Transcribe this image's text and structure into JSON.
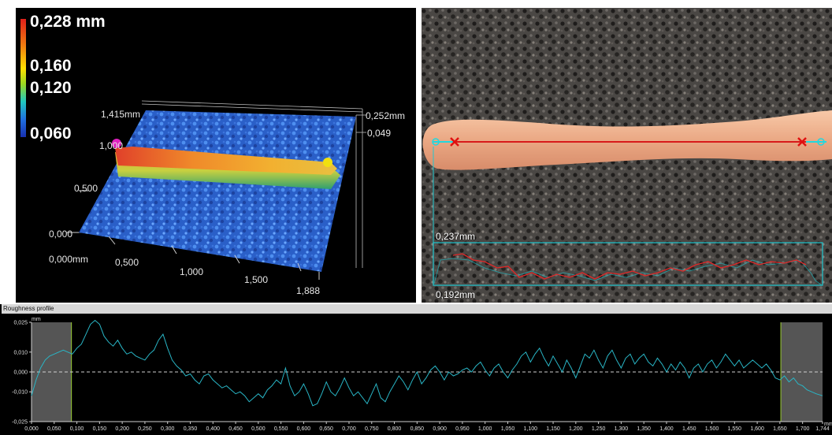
{
  "view3d": {
    "legend": {
      "max": "0,228 mm",
      "v1": "0,160",
      "v2": "0,120",
      "min": "0,060"
    },
    "axis_y": [
      "1,415mm",
      "1,000",
      "0,500",
      "0,000"
    ],
    "axis_x": [
      "0,000mm",
      "0,500",
      "1,000",
      "1,500",
      "1,888"
    ],
    "axis_z": [
      "0,252mm",
      "0,049"
    ]
  },
  "microscope": {
    "label_top": "0,237mm",
    "label_bottom": "0,192mm"
  },
  "roughness": {
    "title": "Roughness profile",
    "unit_y": "mm",
    "unit_x": "mm",
    "y_ticks": [
      "0,025",
      "0,010",
      "0,000",
      "-0,010",
      "-0,025"
    ],
    "x_ticks": [
      "0,000",
      "0,050",
      "0,100",
      "0,150",
      "0,200",
      "0,250",
      "0,300",
      "0,350",
      "0,400",
      "0,450",
      "0,500",
      "0,550",
      "0,600",
      "0,650",
      "0,700",
      "0,750",
      "0,800",
      "0,850",
      "0,900",
      "0,950",
      "1,000",
      "1,050",
      "1,100",
      "1,150",
      "1,200",
      "1,250",
      "1,300",
      "1,350",
      "1,400",
      "1,450",
      "1,500",
      "1,550",
      "1,600",
      "1,650",
      "1,700",
      "1,744"
    ],
    "cutoff_left": 0.088,
    "cutoff_right": 1.652,
    "x_range": [
      0,
      1.744
    ],
    "y_range": [
      -0.025,
      0.025
    ],
    "line_color": "#29b6c6",
    "profile": [
      [
        0.0,
        -0.012
      ],
      [
        0.01,
        -0.004
      ],
      [
        0.02,
        0.002
      ],
      [
        0.03,
        0.006
      ],
      [
        0.04,
        0.008
      ],
      [
        0.05,
        0.009
      ],
      [
        0.06,
        0.01
      ],
      [
        0.07,
        0.011
      ],
      [
        0.08,
        0.01
      ],
      [
        0.09,
        0.009
      ],
      [
        0.1,
        0.012
      ],
      [
        0.11,
        0.014
      ],
      [
        0.12,
        0.019
      ],
      [
        0.13,
        0.024
      ],
      [
        0.14,
        0.026
      ],
      [
        0.15,
        0.024
      ],
      [
        0.16,
        0.018
      ],
      [
        0.17,
        0.015
      ],
      [
        0.18,
        0.013
      ],
      [
        0.19,
        0.016
      ],
      [
        0.2,
        0.012
      ],
      [
        0.21,
        0.009
      ],
      [
        0.22,
        0.01
      ],
      [
        0.23,
        0.008
      ],
      [
        0.24,
        0.007
      ],
      [
        0.25,
        0.006
      ],
      [
        0.26,
        0.009
      ],
      [
        0.27,
        0.011
      ],
      [
        0.28,
        0.016
      ],
      [
        0.29,
        0.019
      ],
      [
        0.3,
        0.012
      ],
      [
        0.31,
        0.006
      ],
      [
        0.32,
        0.003
      ],
      [
        0.33,
        0.001
      ],
      [
        0.34,
        -0.002
      ],
      [
        0.35,
        -0.001
      ],
      [
        0.36,
        -0.004
      ],
      [
        0.37,
        -0.006
      ],
      [
        0.38,
        -0.002
      ],
      [
        0.39,
        -0.001
      ],
      [
        0.4,
        -0.004
      ],
      [
        0.41,
        -0.006
      ],
      [
        0.42,
        -0.008
      ],
      [
        0.43,
        -0.007
      ],
      [
        0.44,
        -0.009
      ],
      [
        0.45,
        -0.011
      ],
      [
        0.46,
        -0.01
      ],
      [
        0.47,
        -0.012
      ],
      [
        0.48,
        -0.015
      ],
      [
        0.49,
        -0.013
      ],
      [
        0.5,
        -0.011
      ],
      [
        0.51,
        -0.013
      ],
      [
        0.52,
        -0.009
      ],
      [
        0.53,
        -0.007
      ],
      [
        0.54,
        -0.004
      ],
      [
        0.55,
        -0.006
      ],
      [
        0.56,
        0.002
      ],
      [
        0.57,
        -0.007
      ],
      [
        0.58,
        -0.012
      ],
      [
        0.59,
        -0.01
      ],
      [
        0.6,
        -0.006
      ],
      [
        0.61,
        -0.011
      ],
      [
        0.62,
        -0.017
      ],
      [
        0.63,
        -0.016
      ],
      [
        0.64,
        -0.011
      ],
      [
        0.65,
        -0.005
      ],
      [
        0.66,
        -0.01
      ],
      [
        0.67,
        -0.012
      ],
      [
        0.68,
        -0.008
      ],
      [
        0.69,
        -0.003
      ],
      [
        0.7,
        -0.008
      ],
      [
        0.71,
        -0.012
      ],
      [
        0.72,
        -0.01
      ],
      [
        0.73,
        -0.013
      ],
      [
        0.74,
        -0.016
      ],
      [
        0.75,
        -0.011
      ],
      [
        0.76,
        -0.006
      ],
      [
        0.77,
        -0.013
      ],
      [
        0.78,
        -0.015
      ],
      [
        0.79,
        -0.01
      ],
      [
        0.8,
        -0.006
      ],
      [
        0.81,
        -0.002
      ],
      [
        0.82,
        -0.005
      ],
      [
        0.83,
        -0.009
      ],
      [
        0.84,
        -0.004
      ],
      [
        0.85,
        0.0
      ],
      [
        0.86,
        -0.006
      ],
      [
        0.87,
        -0.003
      ],
      [
        0.88,
        0.001
      ],
      [
        0.89,
        0.003
      ],
      [
        0.9,
        0.0
      ],
      [
        0.91,
        -0.004
      ],
      [
        0.92,
        0.0
      ],
      [
        0.93,
        -0.002
      ],
      [
        0.94,
        -0.001
      ],
      [
        0.95,
        0.001
      ],
      [
        0.96,
        0.002
      ],
      [
        0.97,
        0.0
      ],
      [
        0.98,
        0.003
      ],
      [
        0.99,
        0.005
      ],
      [
        1.0,
        0.001
      ],
      [
        1.01,
        -0.002
      ],
      [
        1.02,
        0.002
      ],
      [
        1.03,
        0.004
      ],
      [
        1.04,
        0.0
      ],
      [
        1.05,
        -0.003
      ],
      [
        1.06,
        0.001
      ],
      [
        1.07,
        0.004
      ],
      [
        1.08,
        0.008
      ],
      [
        1.09,
        0.01
      ],
      [
        1.1,
        0.005
      ],
      [
        1.11,
        0.009
      ],
      [
        1.12,
        0.012
      ],
      [
        1.13,
        0.007
      ],
      [
        1.14,
        0.003
      ],
      [
        1.15,
        0.008
      ],
      [
        1.16,
        0.004
      ],
      [
        1.17,
        0.0
      ],
      [
        1.18,
        0.006
      ],
      [
        1.19,
        0.002
      ],
      [
        1.2,
        -0.003
      ],
      [
        1.21,
        0.003
      ],
      [
        1.22,
        0.009
      ],
      [
        1.23,
        0.007
      ],
      [
        1.24,
        0.011
      ],
      [
        1.25,
        0.006
      ],
      [
        1.26,
        0.002
      ],
      [
        1.27,
        0.008
      ],
      [
        1.28,
        0.011
      ],
      [
        1.29,
        0.006
      ],
      [
        1.3,
        0.002
      ],
      [
        1.31,
        0.007
      ],
      [
        1.32,
        0.009
      ],
      [
        1.33,
        0.004
      ],
      [
        1.34,
        0.007
      ],
      [
        1.35,
        0.009
      ],
      [
        1.36,
        0.005
      ],
      [
        1.37,
        0.003
      ],
      [
        1.38,
        0.007
      ],
      [
        1.39,
        0.004
      ],
      [
        1.4,
        0.0
      ],
      [
        1.41,
        0.004
      ],
      [
        1.42,
        0.001
      ],
      [
        1.43,
        0.005
      ],
      [
        1.44,
        0.002
      ],
      [
        1.45,
        -0.003
      ],
      [
        1.46,
        0.002
      ],
      [
        1.47,
        0.004
      ],
      [
        1.48,
        0.0
      ],
      [
        1.49,
        0.004
      ],
      [
        1.5,
        0.006
      ],
      [
        1.51,
        0.002
      ],
      [
        1.52,
        0.005
      ],
      [
        1.53,
        0.009
      ],
      [
        1.54,
        0.006
      ],
      [
        1.55,
        0.003
      ],
      [
        1.56,
        0.006
      ],
      [
        1.57,
        0.002
      ],
      [
        1.58,
        0.004
      ],
      [
        1.59,
        0.006
      ],
      [
        1.6,
        0.004
      ],
      [
        1.61,
        0.002
      ],
      [
        1.62,
        0.004
      ],
      [
        1.63,
        0.001
      ],
      [
        1.64,
        -0.003
      ],
      [
        1.65,
        -0.004
      ],
      [
        1.66,
        -0.002
      ],
      [
        1.67,
        -0.005
      ],
      [
        1.68,
        -0.003
      ],
      [
        1.69,
        -0.006
      ],
      [
        1.7,
        -0.007
      ],
      [
        1.71,
        -0.009
      ],
      [
        1.72,
        -0.01
      ],
      [
        1.73,
        -0.011
      ],
      [
        1.744,
        -0.012
      ]
    ]
  }
}
